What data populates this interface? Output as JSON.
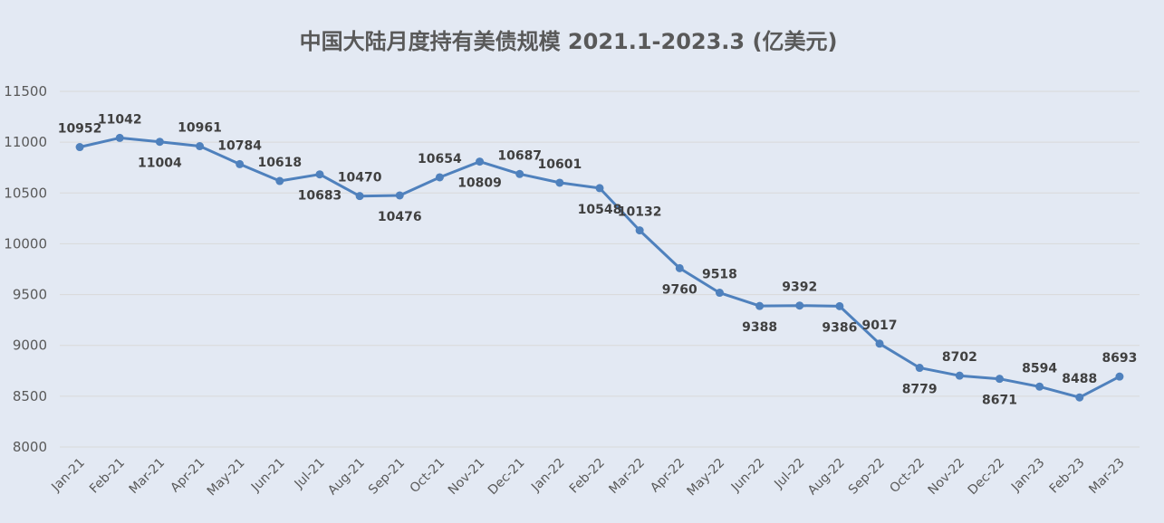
{
  "chart_data": {
    "type": "line",
    "title": "中国大陆月度持有美债规模 2021.1-2023.3 (亿美元)",
    "xlabel": "",
    "ylabel": "",
    "ylim": [
      8000,
      11500
    ],
    "ytick_step": 500,
    "grid": true,
    "legend": "none",
    "categories": [
      "Jan-21",
      "Feb-21",
      "Mar-21",
      "Apr-21",
      "May-21",
      "Jun-21",
      "Jul-21",
      "Aug-21",
      "Sep-21",
      "Oct-21",
      "Nov-21",
      "Dec-21",
      "Jan-22",
      "Feb-22",
      "Mar-22",
      "Apr-22",
      "May-22",
      "Jun-22",
      "Jul-22",
      "Aug-22",
      "Sep-22",
      "Oct-22",
      "Nov-22",
      "Dec-22",
      "Jan-23",
      "Feb-23",
      "Mar-23"
    ],
    "series": [
      {
        "values": [
          10952,
          11042,
          11004,
          10961,
          10784,
          10618,
          10683,
          10470,
          10476,
          10654,
          10809,
          10687,
          10601,
          10548,
          10132,
          9760,
          9518,
          9388,
          9392,
          9386,
          9017,
          8779,
          8702,
          8671,
          8594,
          8488,
          8693
        ]
      }
    ],
    "label_positions": [
      "above",
      "above",
      "below",
      "above",
      "above",
      "above",
      "below",
      "above",
      "below",
      "above",
      "below",
      "above",
      "above",
      "below",
      "above",
      "below",
      "above",
      "below",
      "above",
      "below",
      "above",
      "below",
      "above",
      "below",
      "above",
      "above",
      "above"
    ],
    "colors": {
      "line": "#4f81bd",
      "grid": "#d9d9d9",
      "text": "#595959",
      "label": "#404040"
    }
  }
}
